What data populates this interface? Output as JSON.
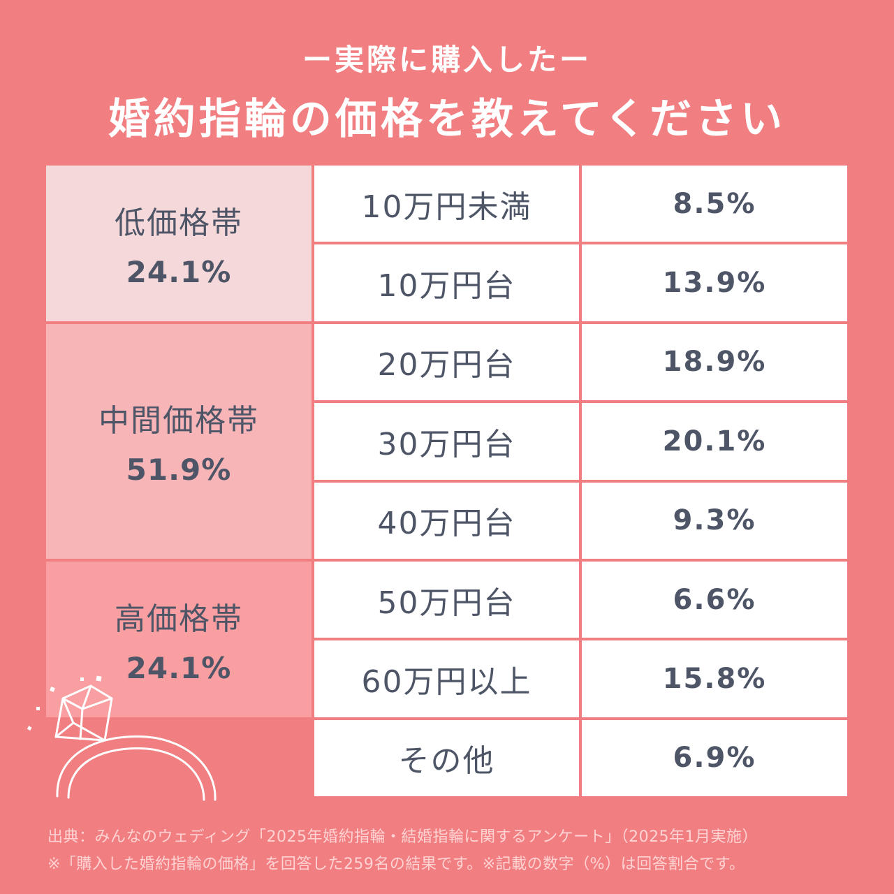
{
  "header": {
    "subtitle": "ー実際に購入したー",
    "title": "婚約指輪の価格を教えてください"
  },
  "colors": {
    "background": "#f17e81",
    "low_band": "#f5d8d9",
    "mid_band": "#f7b5b8",
    "high_band": "#f99fa2",
    "text": "#4d5566"
  },
  "chart_data": {
    "type": "table",
    "groups": [
      {
        "name": "低価格帯",
        "value": "24.1%"
      },
      {
        "name": "中間価格帯",
        "value": "51.9%"
      },
      {
        "name": "高価格帯",
        "value": "24.1%"
      }
    ],
    "categories": [
      "10万円未満",
      "10万円台",
      "20万円台",
      "30万円台",
      "40万円台",
      "50万円台",
      "60万円以上",
      "その他"
    ],
    "values": [
      8.5,
      13.9,
      18.9,
      20.1,
      9.3,
      6.6,
      15.8,
      6.9
    ],
    "value_labels": [
      "8.5%",
      "13.9%",
      "18.9%",
      "20.1%",
      "9.3%",
      "6.6%",
      "15.8%",
      "6.9%"
    ]
  },
  "footnote": {
    "line1": "出典：みんなのウェディング「2025年婚約指輪・結婚指輪に関するアンケート」（2025年1月実施）",
    "line2": "※「購入した婚約指輪の価格」を回答した259名の結果です。※記載の数字（%）は回答割合です。"
  },
  "decoration": {
    "icon": "diamond-ring-icon"
  }
}
